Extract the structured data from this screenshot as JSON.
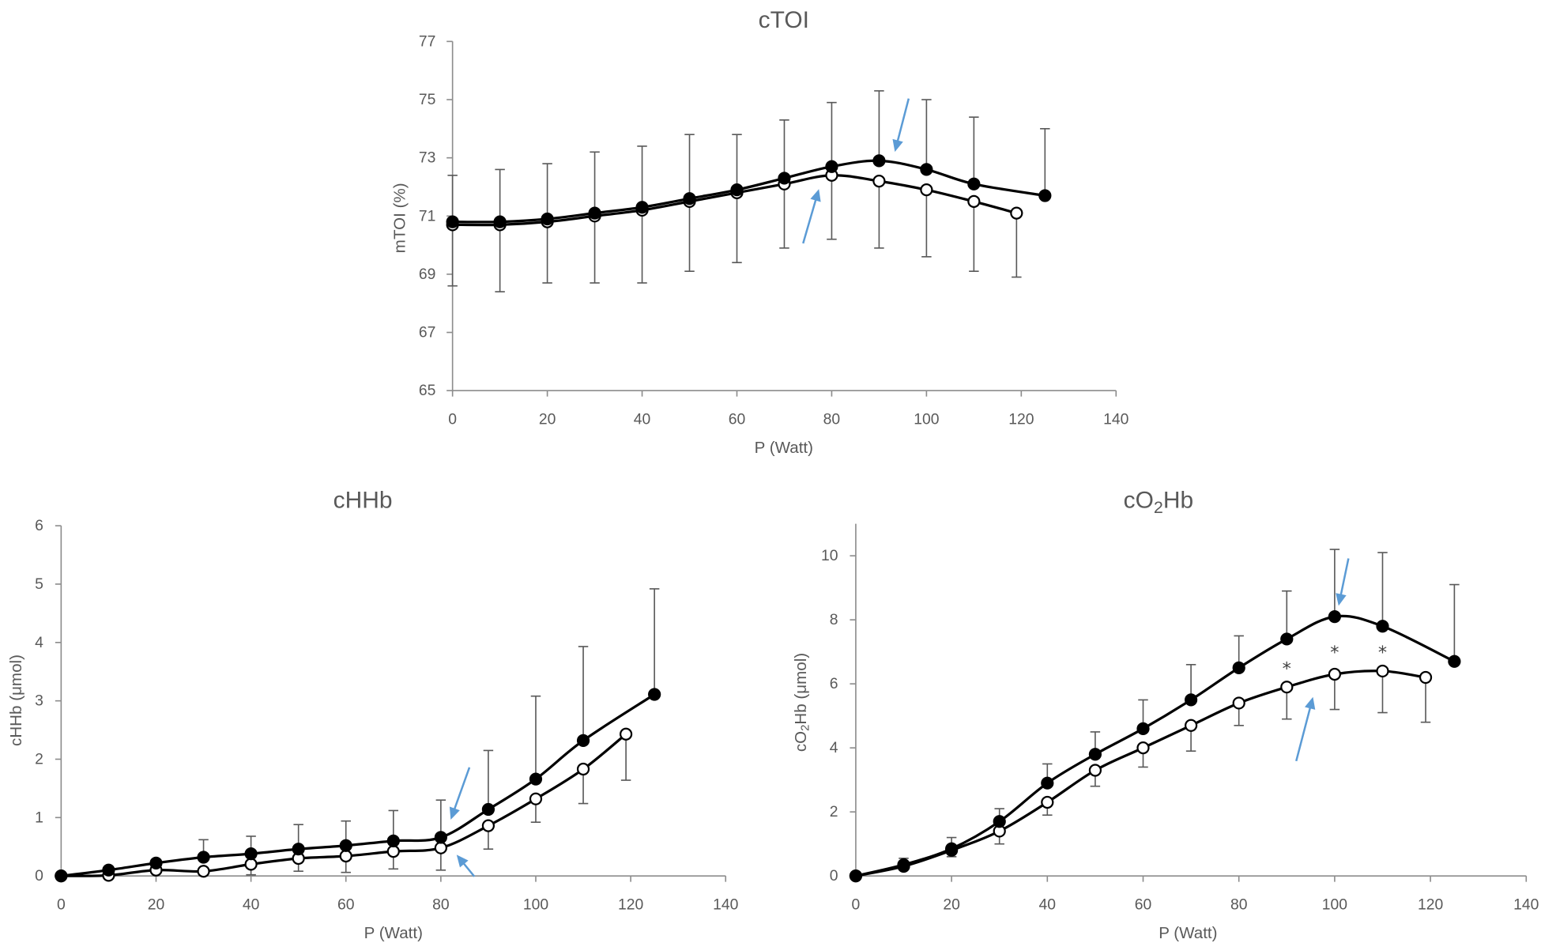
{
  "colors": {
    "line": "#000000",
    "marker_filled": "#000000",
    "marker_open_fill": "#ffffff",
    "axis": "#8c8c8c",
    "text": "#595959",
    "error_bar": "#595959",
    "arrow": "#5b9bd5",
    "asterisk": "#404040"
  },
  "chart_data": [
    {
      "type": "line",
      "title": [
        {
          "text": "cTOI"
        }
      ],
      "xlabel": [
        {
          "text": "P (Watt)"
        }
      ],
      "ylabel": [
        {
          "text": "mTOI (%)"
        }
      ],
      "xlim": [
        0,
        140
      ],
      "ylim": [
        65,
        77
      ],
      "xticks": [
        0,
        20,
        40,
        60,
        80,
        100,
        120,
        140
      ],
      "yticks": [
        65,
        67,
        69,
        71,
        73,
        75,
        77
      ],
      "grid": false,
      "series": [
        {
          "filled_marker": true,
          "x": [
            0,
            10,
            20,
            30,
            40,
            50,
            60,
            70,
            80,
            90,
            100,
            110,
            125
          ],
          "y": [
            70.8,
            70.8,
            70.9,
            71.1,
            71.3,
            71.6,
            71.9,
            72.3,
            72.7,
            72.9,
            72.6,
            72.1,
            71.7
          ],
          "err_upper": [
            1.6,
            1.8,
            1.9,
            2.1,
            2.1,
            2.2,
            1.9,
            2.0,
            2.2,
            2.4,
            2.4,
            2.3,
            2.3
          ]
        },
        {
          "filled_marker": false,
          "x": [
            0,
            10,
            20,
            30,
            40,
            50,
            60,
            70,
            80,
            90,
            100,
            110,
            119
          ],
          "y": [
            70.7,
            70.7,
            70.8,
            71.0,
            71.2,
            71.5,
            71.8,
            72.1,
            72.4,
            72.2,
            71.9,
            71.5,
            71.1
          ],
          "err_lower": [
            2.1,
            2.3,
            2.1,
            2.3,
            2.5,
            2.4,
            2.4,
            2.2,
            2.2,
            2.3,
            2.3,
            2.4,
            2.2
          ]
        }
      ],
      "arrows": [
        {
          "series": 0,
          "x": 90
        },
        {
          "series": 1,
          "x": 80
        }
      ],
      "annotations": []
    },
    {
      "type": "line",
      "title": [
        {
          "text": "cHHb"
        }
      ],
      "xlabel": [
        {
          "text": "P (Watt)"
        }
      ],
      "ylabel": [
        {
          "text": "cHHb (μmol)"
        }
      ],
      "xlim": [
        0,
        140
      ],
      "ylim": [
        0,
        6
      ],
      "xticks": [
        0,
        20,
        40,
        60,
        80,
        100,
        120,
        140
      ],
      "yticks": [
        0,
        1,
        2,
        3,
        4,
        5,
        6
      ],
      "grid": false,
      "series": [
        {
          "filled_marker": true,
          "x": [
            0,
            10,
            20,
            30,
            40,
            50,
            60,
            70,
            80,
            90,
            100,
            110,
            125
          ],
          "y": [
            0,
            0.1,
            0.22,
            0.32,
            0.38,
            0.46,
            0.52,
            0.6,
            0.66,
            1.14,
            1.66,
            2.32,
            3.11
          ],
          "err_upper": [
            0,
            0.06,
            0.06,
            0.3,
            0.3,
            0.42,
            0.42,
            0.52,
            0.64,
            1.01,
            1.42,
            1.61,
            1.81
          ]
        },
        {
          "filled_marker": false,
          "x": [
            0,
            10,
            20,
            30,
            40,
            50,
            60,
            70,
            80,
            90,
            100,
            110,
            119
          ],
          "y": [
            0,
            0.01,
            0.1,
            0.08,
            0.2,
            0.3,
            0.34,
            0.42,
            0.48,
            0.86,
            1.32,
            1.83,
            2.43
          ],
          "err_lower": [
            0,
            0,
            0.04,
            0.06,
            0.18,
            0.22,
            0.28,
            0.3,
            0.38,
            0.4,
            0.4,
            0.59,
            0.79
          ]
        }
      ],
      "arrows": [
        {
          "series": 0,
          "x": 80
        },
        {
          "series": 1,
          "x": 80
        }
      ],
      "annotations": []
    },
    {
      "type": "line",
      "title": [
        {
          "text": "cO"
        },
        {
          "text": "2",
          "sub": true
        },
        {
          "text": "Hb"
        }
      ],
      "xlabel": [
        {
          "text": "P (Watt)"
        }
      ],
      "ylabel": [
        {
          "text": "cO"
        },
        {
          "text": "2",
          "sub": true
        },
        {
          "text": "Hb (μmol)"
        }
      ],
      "xlim": [
        0,
        140
      ],
      "ylim": [
        0,
        11
      ],
      "xticks": [
        0,
        20,
        40,
        60,
        80,
        100,
        120,
        140
      ],
      "yticks": [
        0,
        2,
        4,
        6,
        8,
        10
      ],
      "grid": false,
      "series": [
        {
          "filled_marker": true,
          "x": [
            0,
            10,
            20,
            30,
            40,
            50,
            60,
            70,
            80,
            90,
            100,
            110,
            125
          ],
          "y": [
            0,
            0.35,
            0.85,
            1.7,
            2.9,
            3.8,
            4.6,
            5.5,
            6.5,
            7.4,
            8.1,
            7.8,
            6.7
          ],
          "err_upper": [
            0,
            0.2,
            0.35,
            0.4,
            0.6,
            0.7,
            0.9,
            1.1,
            1.0,
            1.5,
            2.1,
            2.3,
            2.4
          ]
        },
        {
          "filled_marker": false,
          "x": [
            0,
            10,
            20,
            30,
            40,
            50,
            60,
            70,
            80,
            90,
            100,
            110,
            119
          ],
          "y": [
            0,
            0.3,
            0.8,
            1.4,
            2.3,
            3.3,
            4.0,
            4.7,
            5.4,
            5.9,
            6.3,
            6.4,
            6.2
          ],
          "err_lower": [
            0,
            0.1,
            0.2,
            0.4,
            0.4,
            0.5,
            0.6,
            0.8,
            0.7,
            1.0,
            1.1,
            1.3,
            1.4
          ]
        }
      ],
      "arrows": [
        {
          "series": 0,
          "x": 100
        },
        {
          "series": 1,
          "x": 100
        }
      ],
      "annotations": [
        {
          "text": "*",
          "x": 90,
          "y": 6.6
        },
        {
          "text": "*",
          "x": 100,
          "y": 7.1
        },
        {
          "text": "*",
          "x": 110,
          "y": 7.1
        }
      ]
    }
  ]
}
